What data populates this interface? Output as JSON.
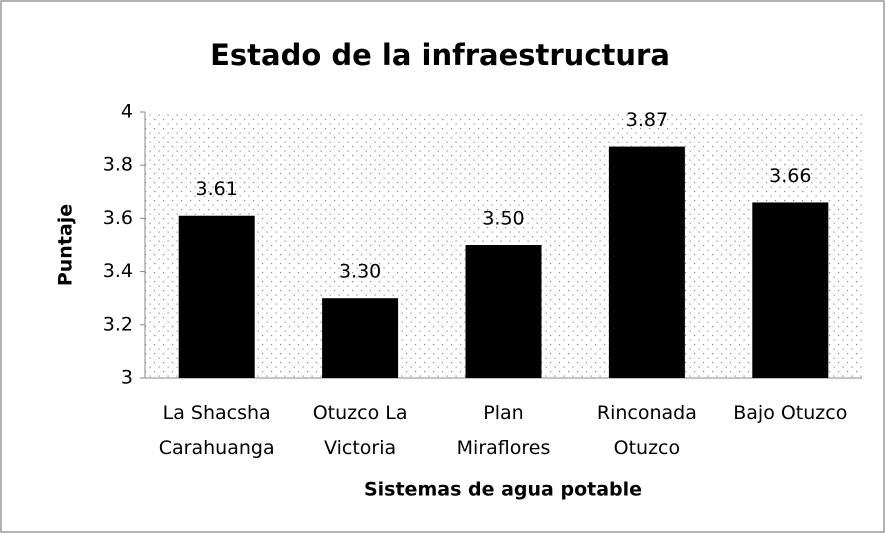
{
  "chart_data": {
    "type": "bar",
    "title": "Estado de la infraestructura",
    "x_label": "Sistemas de agua potable",
    "y_label": "Puntaje",
    "categories": [
      "La Shacsha Carahuanga",
      "Otuzco La Victoria",
      "Plan Miraflores",
      "Rinconada Otuzco",
      "Bajo Otuzco"
    ],
    "values": [
      3.61,
      3.3,
      3.5,
      3.87,
      3.66
    ],
    "value_labels": [
      "3.61",
      "3.30",
      "3.50",
      "3.87",
      "3.66"
    ],
    "color": "#000000",
    "ylim": [
      3,
      4
    ],
    "yticks": [
      3,
      3.2,
      3.4,
      3.6,
      3.8,
      4
    ]
  }
}
